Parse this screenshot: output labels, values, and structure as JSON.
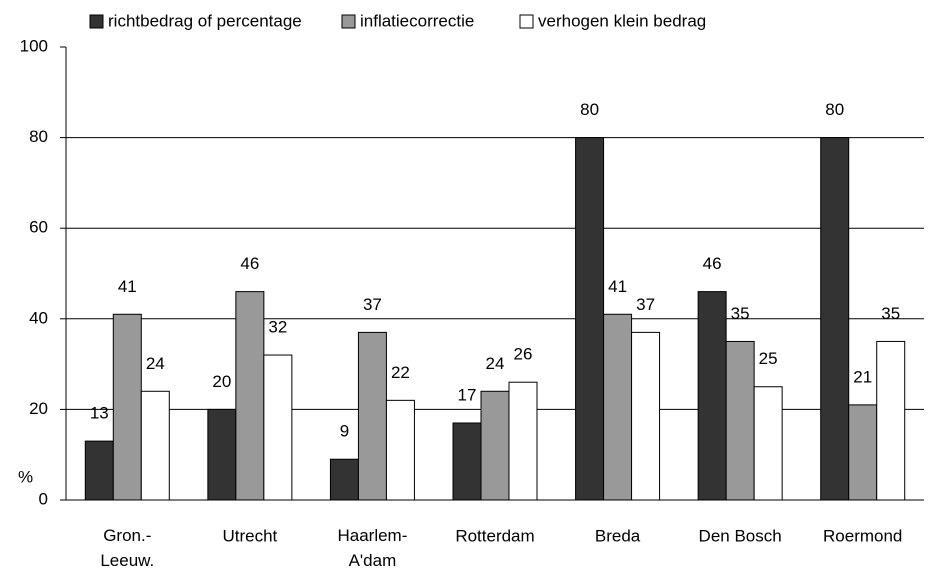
{
  "chart_data": {
    "type": "bar",
    "ylabel": "%",
    "categories": [
      "Gron.-\nLeeuw.",
      "Utrecht",
      "Haarlem-\nA'dam",
      "Rotterdam",
      "Breda",
      "Den Bosch",
      "Roermond"
    ],
    "series": [
      {
        "name": "richtbedrag of percentage",
        "color": "#333333",
        "values": [
          13,
          20,
          9,
          17,
          80,
          46,
          80
        ]
      },
      {
        "name": "inflatiecorrectie",
        "color": "#999999",
        "values": [
          41,
          46,
          37,
          24,
          41,
          35,
          21
        ]
      },
      {
        "name": "verhogen klein bedrag",
        "color": "#ffffff",
        "values": [
          24,
          32,
          22,
          26,
          37,
          25,
          35
        ]
      }
    ],
    "ylim": [
      0,
      100
    ],
    "yticks": [
      0,
      20,
      40,
      60,
      80,
      100
    ],
    "grid": true,
    "legend": "top"
  }
}
